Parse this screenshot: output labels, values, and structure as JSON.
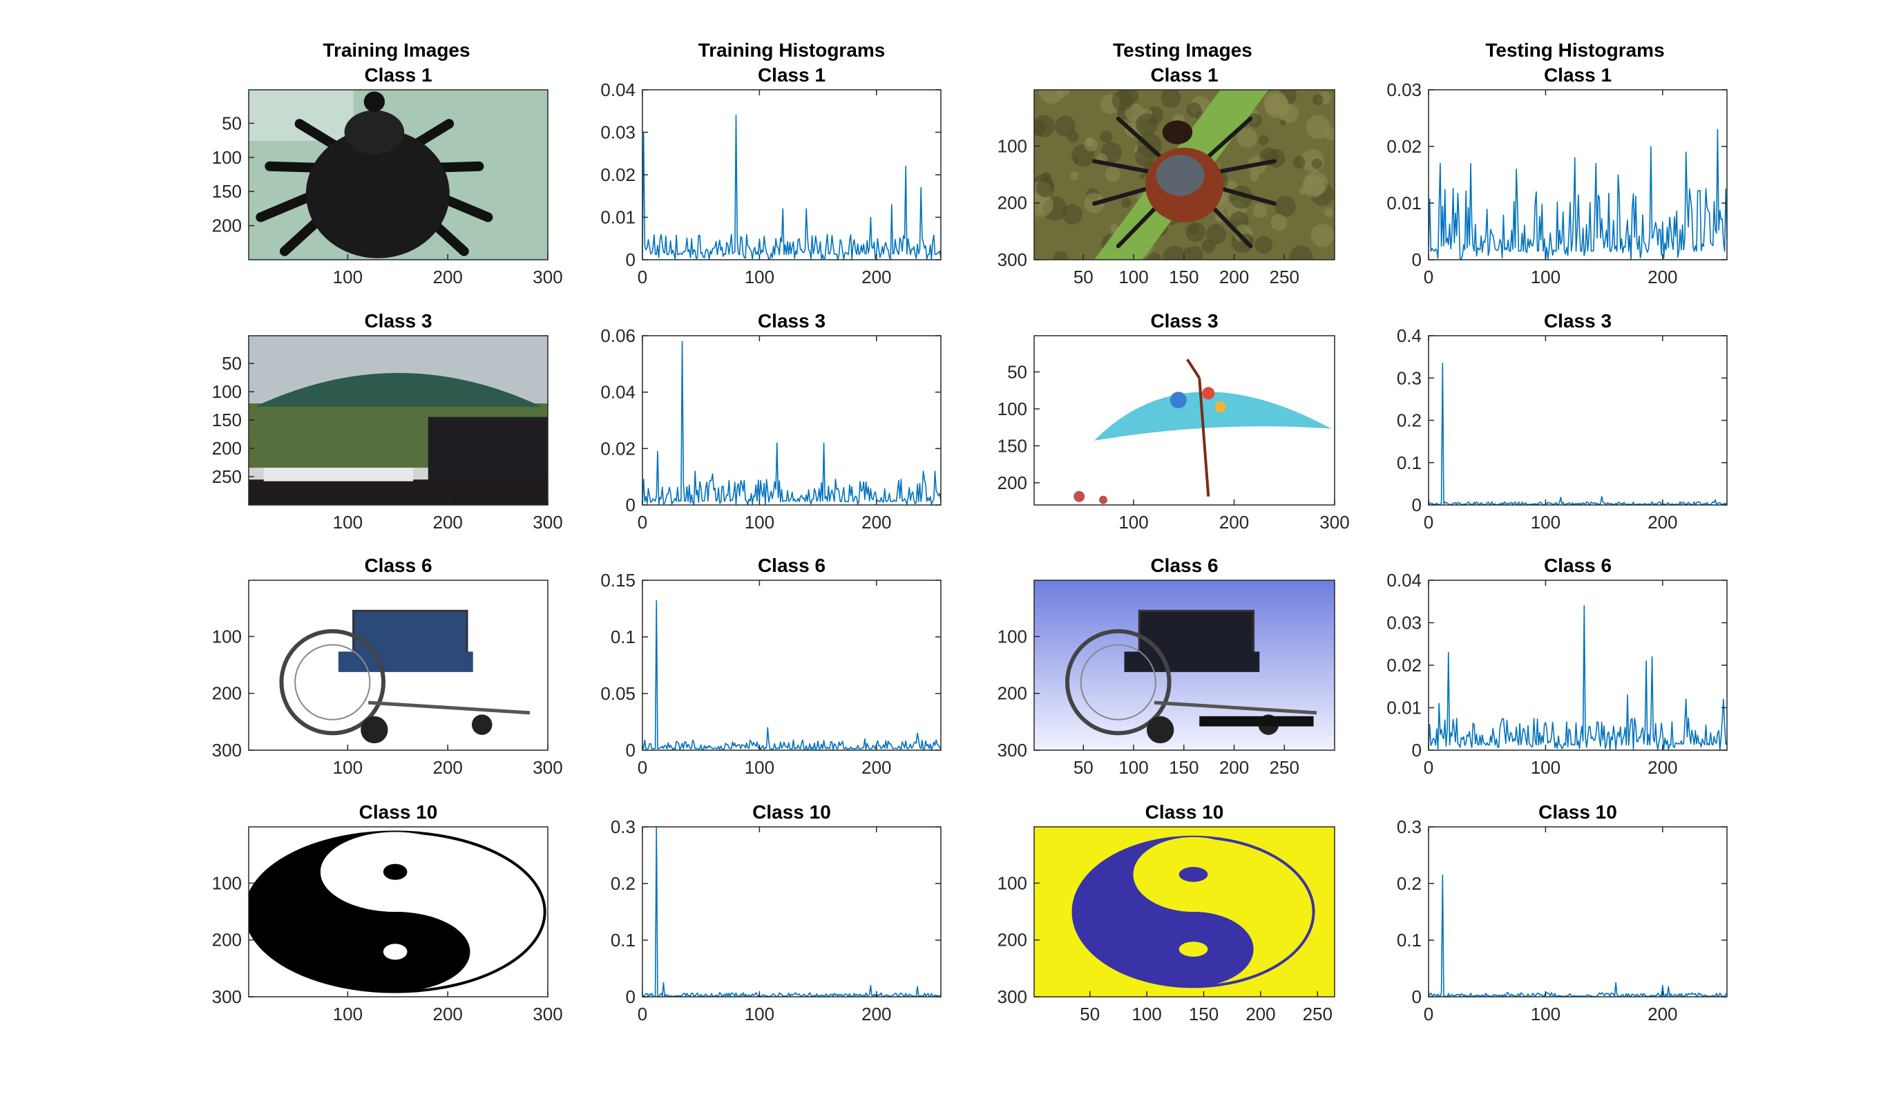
{
  "figure": {
    "column_titles": [
      "Training Images",
      "Training Histograms",
      "Testing Images",
      "Testing Histograms"
    ]
  },
  "colors": {
    "line": "#0072BD",
    "axes": "#262626"
  },
  "chart_data": [
    {
      "type": "image",
      "panel": "train-image",
      "row": 0,
      "title": "Class 1",
      "content": "tick-insect-photo",
      "xticks": [
        100,
        200,
        300
      ],
      "yticks": [
        50,
        100,
        150,
        200
      ],
      "xlim": [
        1,
        300
      ],
      "ylim": [
        1,
        250
      ]
    },
    {
      "type": "line",
      "panel": "train-hist",
      "row": 0,
      "title": "Class 1",
      "xlim": [
        0,
        255
      ],
      "ylim": [
        0,
        0.04
      ],
      "xticks": [
        0,
        100,
        200
      ],
      "yticks": [
        0,
        0.01,
        0.02,
        0.03,
        0.04
      ],
      "ytick_labels": [
        "0",
        "0.01",
        "0.02",
        "0.03",
        "0.04"
      ],
      "base": 0.004,
      "noise": 0.003,
      "spikes": [
        [
          1,
          0.03
        ],
        [
          80,
          0.034
        ],
        [
          225,
          0.022
        ],
        [
          238,
          0.017
        ],
        [
          213,
          0.013
        ],
        [
          195,
          0.01
        ],
        [
          120,
          0.012
        ],
        [
          140,
          0.012
        ]
      ]
    },
    {
      "type": "image",
      "panel": "test-image",
      "row": 0,
      "title": "Class 1",
      "content": "tick-on-grass-photo",
      "xticks": [
        50,
        100,
        150,
        200,
        250
      ],
      "yticks": [
        100,
        200,
        300
      ],
      "xlim": [
        1,
        300
      ],
      "ylim": [
        1,
        300
      ]
    },
    {
      "type": "line",
      "panel": "test-hist",
      "row": 0,
      "title": "Class 1",
      "xlim": [
        0,
        255
      ],
      "ylim": [
        0,
        0.03
      ],
      "xticks": [
        0,
        100,
        200
      ],
      "yticks": [
        0,
        0.01,
        0.02,
        0.03
      ],
      "ytick_labels": [
        "0",
        "0.01",
        "0.02",
        "0.03"
      ],
      "base": 0.005,
      "noise": 0.007,
      "spikes": [
        [
          10,
          0.017
        ],
        [
          36,
          0.017
        ],
        [
          75,
          0.016
        ],
        [
          125,
          0.018
        ],
        [
          143,
          0.017
        ],
        [
          190,
          0.02
        ],
        [
          220,
          0.019
        ],
        [
          247,
          0.023
        ],
        [
          162,
          0.015
        ]
      ]
    },
    {
      "type": "image",
      "panel": "train-image",
      "row": 1,
      "title": "Class 3",
      "content": "green-umbrella-photo",
      "xticks": [
        100,
        200,
        300
      ],
      "yticks": [
        50,
        100,
        150,
        200,
        250
      ],
      "xlim": [
        1,
        300
      ],
      "ylim": [
        1,
        300
      ]
    },
    {
      "type": "line",
      "panel": "train-hist",
      "row": 1,
      "title": "Class 3",
      "xlim": [
        0,
        255
      ],
      "ylim": [
        0,
        0.06
      ],
      "xticks": [
        0,
        100,
        200
      ],
      "yticks": [
        0,
        0.02,
        0.04,
        0.06
      ],
      "ytick_labels": [
        "0",
        "0.02",
        "0.04",
        "0.06"
      ],
      "base": 0.004,
      "noise": 0.005,
      "spikes": [
        [
          13,
          0.019
        ],
        [
          34,
          0.058
        ],
        [
          45,
          0.012
        ],
        [
          115,
          0.022
        ],
        [
          155,
          0.022
        ],
        [
          60,
          0.011
        ],
        [
          240,
          0.012
        ],
        [
          250,
          0.012
        ]
      ]
    },
    {
      "type": "image",
      "panel": "test-image",
      "row": 1,
      "title": "Class 3",
      "content": "blue-umbrella-photo",
      "xticks": [
        100,
        200,
        300
      ],
      "yticks": [
        50,
        100,
        150,
        200
      ],
      "xlim": [
        1,
        300
      ],
      "ylim": [
        1,
        230
      ]
    },
    {
      "type": "line",
      "panel": "test-hist",
      "row": 1,
      "title": "Class 3",
      "xlim": [
        0,
        255
      ],
      "ylim": [
        0,
        0.4
      ],
      "xticks": [
        0,
        100,
        200
      ],
      "yticks": [
        0,
        0.1,
        0.2,
        0.3,
        0.4
      ],
      "ytick_labels": [
        "0",
        "0.1",
        "0.2",
        "0.3",
        "0.4"
      ],
      "base": 0.004,
      "noise": 0.004,
      "spikes": [
        [
          12,
          0.335
        ],
        [
          113,
          0.018
        ],
        [
          148,
          0.02
        ],
        [
          245,
          0.012
        ]
      ]
    },
    {
      "type": "image",
      "panel": "train-image",
      "row": 2,
      "title": "Class 6",
      "content": "wheelchair-photo",
      "xticks": [
        100,
        200,
        300
      ],
      "yticks": [
        100,
        200,
        300
      ],
      "xlim": [
        1,
        300
      ],
      "ylim": [
        1,
        300
      ]
    },
    {
      "type": "line",
      "panel": "train-hist",
      "row": 2,
      "title": "Class 6",
      "xlim": [
        0,
        255
      ],
      "ylim": [
        0,
        0.15
      ],
      "xticks": [
        0,
        100,
        200
      ],
      "yticks": [
        0,
        0.05,
        0.1,
        0.15
      ],
      "ytick_labels": [
        "0",
        "0.05",
        "0.1",
        "0.15"
      ],
      "base": 0.004,
      "noise": 0.005,
      "spikes": [
        [
          12,
          0.132
        ],
        [
          107,
          0.02
        ],
        [
          235,
          0.015
        ],
        [
          190,
          0.01
        ]
      ]
    },
    {
      "type": "image",
      "panel": "test-image",
      "row": 2,
      "title": "Class 6",
      "content": "wheelchair-blue-background-photo",
      "xticks": [
        50,
        100,
        150,
        200,
        250
      ],
      "yticks": [
        100,
        200,
        300
      ],
      "xlim": [
        1,
        300
      ],
      "ylim": [
        1,
        300
      ]
    },
    {
      "type": "line",
      "panel": "test-hist",
      "row": 2,
      "title": "Class 6",
      "xlim": [
        0,
        255
      ],
      "ylim": [
        0,
        0.04
      ],
      "xticks": [
        0,
        100,
        200
      ],
      "yticks": [
        0,
        0.01,
        0.02,
        0.03,
        0.04
      ],
      "ytick_labels": [
        "0",
        "0.01",
        "0.02",
        "0.03",
        "0.04"
      ],
      "base": 0.004,
      "noise": 0.004,
      "spikes": [
        [
          17,
          0.023
        ],
        [
          133,
          0.034
        ],
        [
          186,
          0.021
        ],
        [
          191,
          0.022
        ],
        [
          9,
          0.011
        ],
        [
          170,
          0.013
        ],
        [
          220,
          0.012
        ],
        [
          252,
          0.012
        ]
      ]
    },
    {
      "type": "image",
      "panel": "train-image",
      "row": 3,
      "title": "Class 10",
      "content": "yin-yang-black-white",
      "xticks": [
        100,
        200,
        300
      ],
      "yticks": [
        100,
        200,
        300
      ],
      "xlim": [
        1,
        300
      ],
      "ylim": [
        1,
        300
      ]
    },
    {
      "type": "line",
      "panel": "train-hist",
      "row": 3,
      "title": "Class 10",
      "xlim": [
        0,
        255
      ],
      "ylim": [
        0,
        0.3
      ],
      "xticks": [
        0,
        100,
        200
      ],
      "yticks": [
        0,
        0.1,
        0.2,
        0.3
      ],
      "ytick_labels": [
        "0",
        "0.1",
        "0.2",
        "0.3"
      ],
      "base": 0.003,
      "noise": 0.004,
      "spikes": [
        [
          12,
          0.3
        ],
        [
          18,
          0.025
        ],
        [
          195,
          0.02
        ],
        [
          235,
          0.018
        ]
      ]
    },
    {
      "type": "image",
      "panel": "test-image",
      "row": 3,
      "title": "Class 10",
      "content": "yin-yang-blue-yellow",
      "xticks": [
        50,
        100,
        150,
        200,
        250
      ],
      "yticks": [
        100,
        200,
        300
      ],
      "xlim": [
        1,
        265
      ],
      "ylim": [
        1,
        300
      ]
    },
    {
      "type": "line",
      "panel": "test-hist",
      "row": 3,
      "title": "Class 10",
      "xlim": [
        0,
        255
      ],
      "ylim": [
        0,
        0.3
      ],
      "xticks": [
        0,
        100,
        200
      ],
      "yticks": [
        0,
        0.1,
        0.2,
        0.3
      ],
      "ytick_labels": [
        "0",
        "0.1",
        "0.2",
        "0.3"
      ],
      "base": 0.003,
      "noise": 0.004,
      "spikes": [
        [
          12,
          0.215
        ],
        [
          160,
          0.025
        ],
        [
          200,
          0.02
        ],
        [
          205,
          0.018
        ]
      ]
    }
  ]
}
